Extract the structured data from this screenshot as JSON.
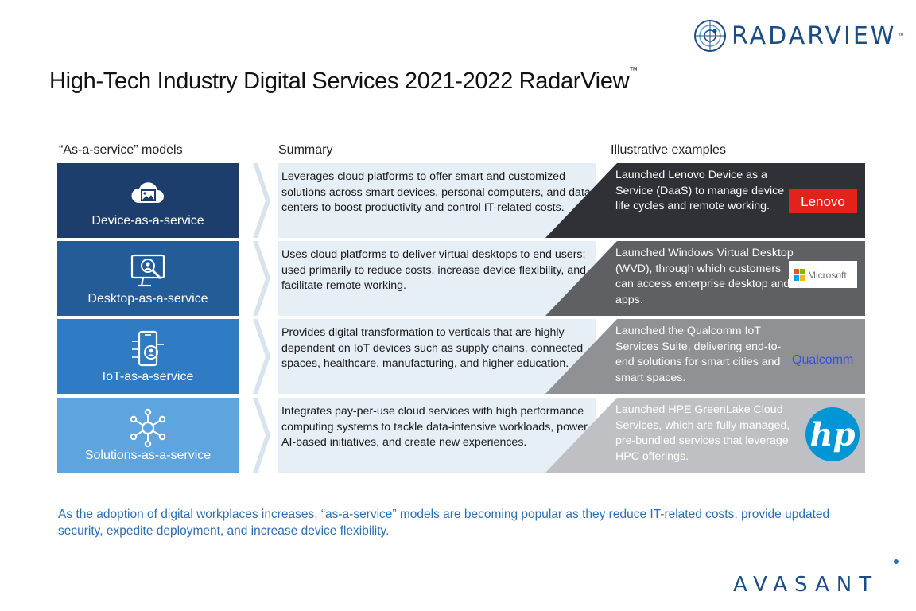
{
  "header": {
    "logo_text": "RADARVIEW",
    "logo_tm": "™",
    "title": "High-Tech Industry Digital Services 2021-2022 RadarView",
    "title_tm": "™"
  },
  "columns": {
    "models": "“As-a-service” models",
    "summary": "Summary",
    "examples": "Illustrative examples"
  },
  "rows": [
    {
      "model": "Device-as-a-service",
      "icon": "cloud-image-icon",
      "summary": "Leverages cloud platforms to offer smart and customized solutions across smart devices, personal computers, and data centers to boost productivity and control IT-related costs.",
      "example": "Launched Lenovo Device as a Service (DaaS) to manage device life cycles and remote working.",
      "brand": "Lenovo"
    },
    {
      "model": "Desktop-as-a-service",
      "icon": "monitor-user-search-icon",
      "summary": "Uses cloud platforms to deliver virtual desktops to end users; used primarily to reduce costs, increase device flexibility, and facilitate remote working.",
      "example": "Launched Windows Virtual Desktop (WVD), through which customers can access enterprise desktop and apps.",
      "brand": "Microsoft"
    },
    {
      "model": "IoT-as-a-service",
      "icon": "smartphone-iot-icon",
      "summary": "Provides digital transformation to verticals that are highly dependent on IoT devices such as supply chains, connected spaces, healthcare, manufacturing, and higher education.",
      "example": "Launched the Qualcomm IoT Services Suite, delivering end-to-end solutions for smart cities and smart spaces.",
      "brand": "Qualcomm"
    },
    {
      "model": "Solutions-as-a-service",
      "icon": "network-hub-icon",
      "summary": "Integrates pay-per-use cloud services with high performance computing systems to tackle data-intensive workloads, power AI-based initiatives, and create new experiences.",
      "example": "Launched HPE GreenLake Cloud Services, which are fully managed, pre-bundled services that leverage HPC offerings.",
      "brand": "hp"
    }
  ],
  "footnote": "As the adoption of digital workplaces increases, “as-a-service” models are becoming popular as they reduce IT-related costs, provide updated security, expedite deployment, and increase device flexibility.",
  "footer": {
    "logo_text": "AVASANT"
  },
  "colors": {
    "model_fills": [
      "#1d3e6c",
      "#245c98",
      "#2f7cc4",
      "#5ea4de"
    ],
    "example_fills": [
      "#2f3136",
      "#5f6064",
      "#909194",
      "#bfc0c3"
    ],
    "summary_fill": "#e6eef6",
    "accent": "#2e6fb2"
  }
}
